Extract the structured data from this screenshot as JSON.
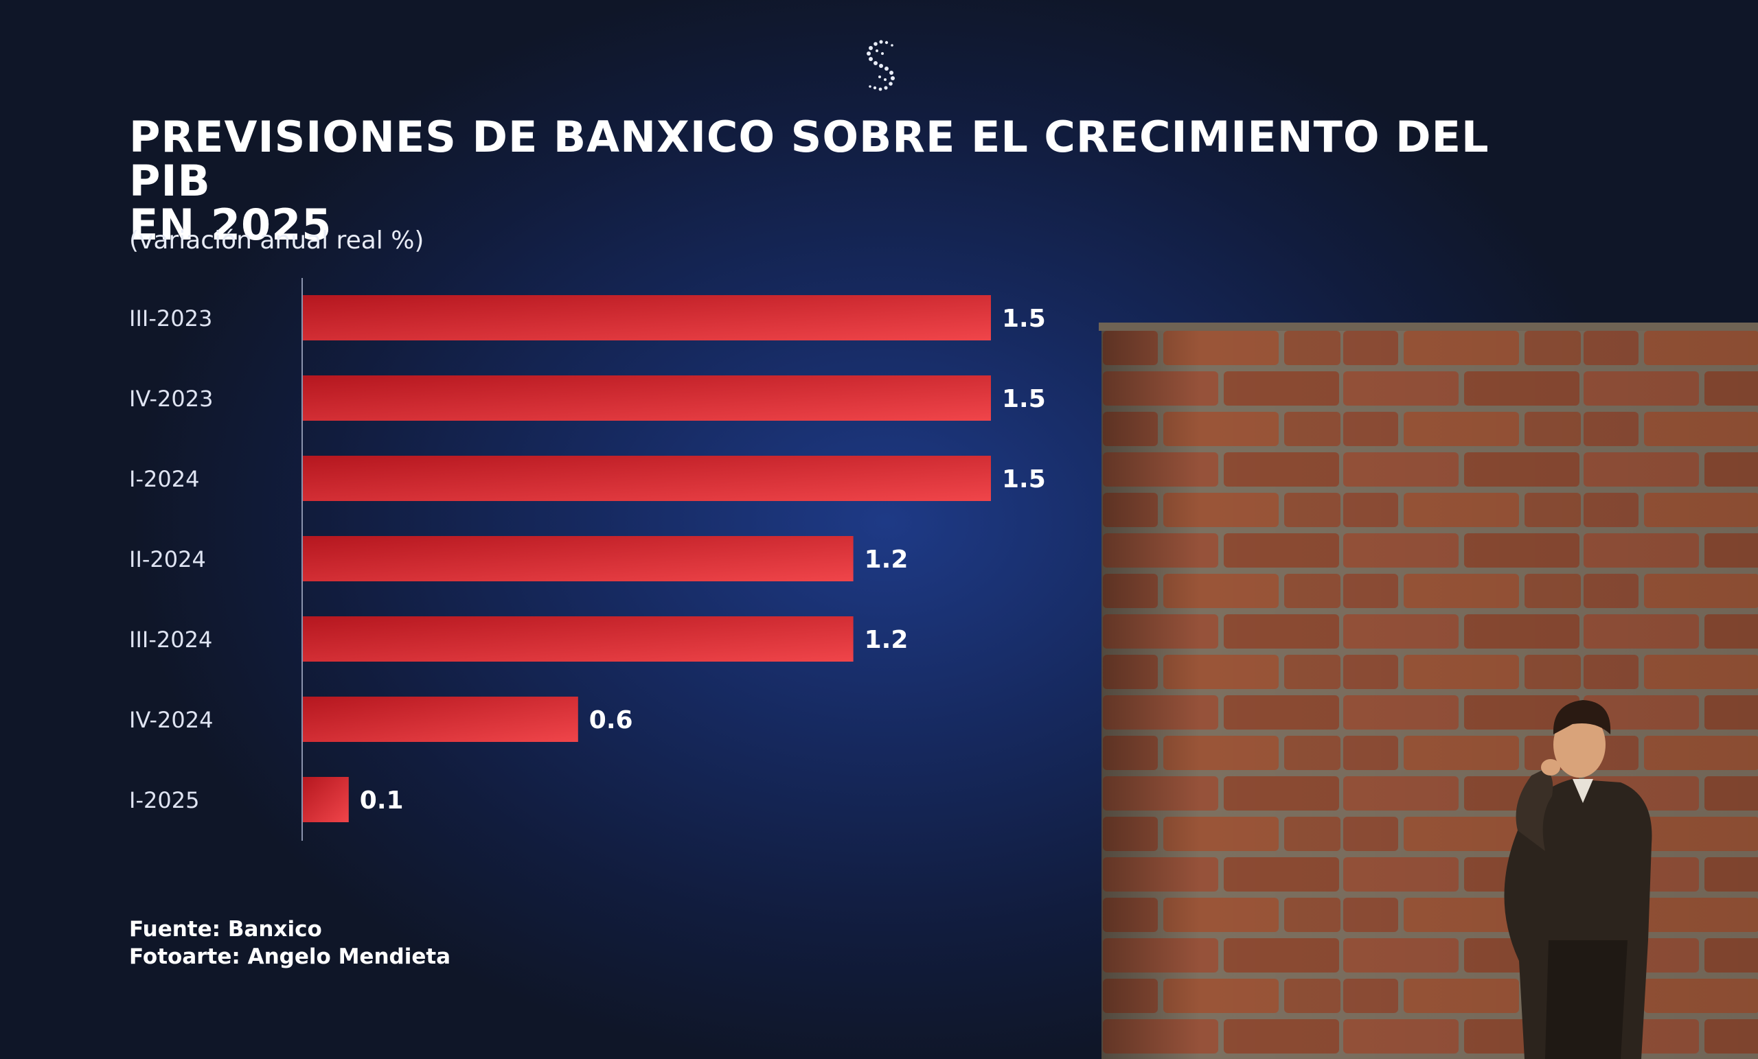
{
  "header": {
    "title_line1": "PREVISIONES DE BANXICO SOBRE EL CRECIMIENTO DEL PIB",
    "title_line2": "EN 2025",
    "subtitle": "(variación anual real %)"
  },
  "footer": {
    "source": "Fuente: Banxico",
    "credit": "Fotoarte: Angelo Mendieta"
  },
  "colors": {
    "bar_dark": "#b5171f",
    "bar_light": "#f0454a",
    "axis": "#8a93ad",
    "background": "#16295f"
  },
  "icons": [
    "logo-icon"
  ],
  "chart_data": {
    "type": "bar",
    "orientation": "horizontal",
    "title": "PREVISIONES DE BANXICO SOBRE EL CRECIMIENTO DEL PIB EN 2025",
    "subtitle": "(variación anual real %)",
    "categories": [
      "III-2023",
      "IV-2023",
      "I-2024",
      "II-2024",
      "III-2024",
      "IV-2024",
      "I-2025"
    ],
    "values": [
      1.5,
      1.5,
      1.5,
      1.2,
      1.2,
      0.6,
      0.1
    ],
    "value_labels": [
      "1.5",
      "1.5",
      "1.5",
      "1.2",
      "1.2",
      "0.6",
      "0.1"
    ],
    "xlim": [
      0,
      1.5
    ],
    "grid": false,
    "legend": "none"
  }
}
